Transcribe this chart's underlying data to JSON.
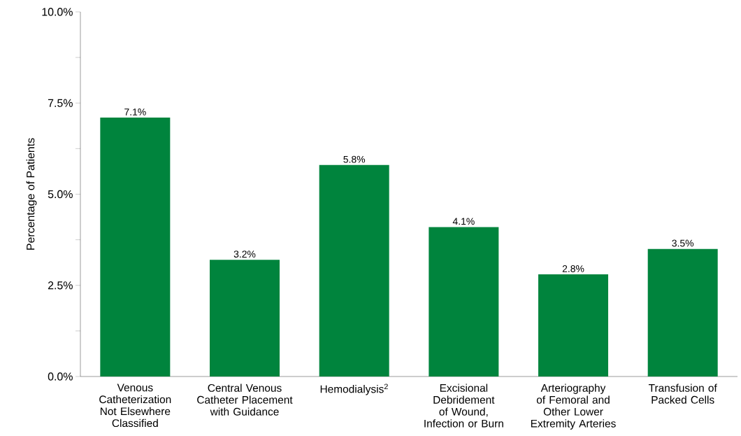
{
  "chart_data": {
    "type": "bar",
    "ylabel": "Percentage of Patients",
    "categories": [
      "Venous Catheterization Not Elsewhere Classified",
      "Central Venous Catheter Placement with Guidance",
      "Hemodialysis$^{2}$",
      "Excisional Debridement of Wound, Infection or Burn",
      "Arteriography of Femoral and Other Lower Extremity Arteries",
      "Transfusion of Packed Cells"
    ],
    "values": [
      7.1,
      3.2,
      5.8,
      4.1,
      2.8,
      3.5
    ],
    "value_labels": [
      "7.1%",
      "3.2%",
      "5.8%",
      "4.1%",
      "2.8%",
      "3.5%"
    ],
    "color": "#00843d",
    "ylim": [
      0,
      10
    ],
    "yticks": [
      {
        "value": 0,
        "label": "0.0%"
      },
      {
        "value": 1.25,
        "label": null
      },
      {
        "value": 2.5,
        "label": "2.5%"
      },
      {
        "value": 3.75,
        "label": null
      },
      {
        "value": 5,
        "label": "5.0%"
      },
      {
        "value": 6.25,
        "label": null
      },
      {
        "value": 7.5,
        "label": "7.5%"
      },
      {
        "value": 8.75,
        "label": null
      },
      {
        "value": 10,
        "label": "10.0%"
      }
    ],
    "grid": false
  }
}
